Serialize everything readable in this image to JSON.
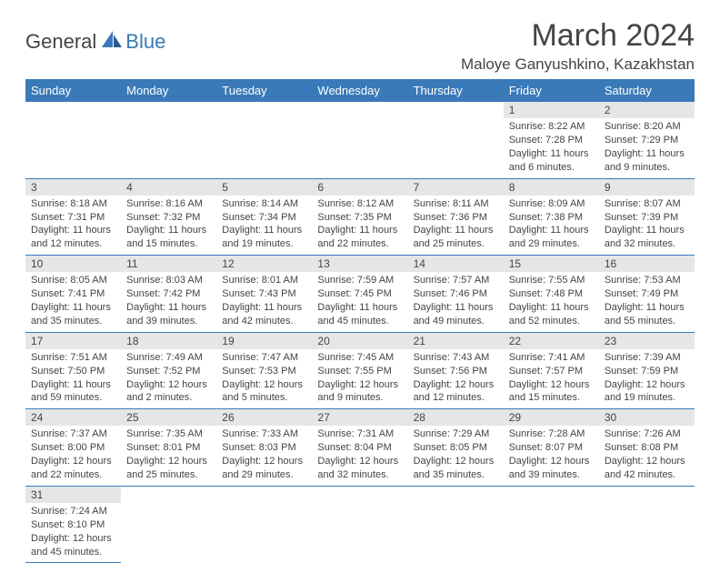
{
  "logo": {
    "general": "General",
    "blue": "Blue"
  },
  "header": {
    "month_title": "March 2024",
    "location": "Maloye Ganyushkino, Kazakhstan"
  },
  "day_headers": [
    "Sunday",
    "Monday",
    "Tuesday",
    "Wednesday",
    "Thursday",
    "Friday",
    "Saturday"
  ],
  "colors": {
    "header_bg": "#3a7ab8",
    "header_text": "#ffffff",
    "daynum_bg": "#e6e6e6",
    "text": "#444444",
    "row_border": "#3a7ab8"
  },
  "weeks": [
    [
      null,
      null,
      null,
      null,
      null,
      {
        "n": "1",
        "sun": "Sunrise: 8:22 AM",
        "set": "Sunset: 7:28 PM",
        "dl1": "Daylight: 11 hours",
        "dl2": "and 6 minutes."
      },
      {
        "n": "2",
        "sun": "Sunrise: 8:20 AM",
        "set": "Sunset: 7:29 PM",
        "dl1": "Daylight: 11 hours",
        "dl2": "and 9 minutes."
      }
    ],
    [
      {
        "n": "3",
        "sun": "Sunrise: 8:18 AM",
        "set": "Sunset: 7:31 PM",
        "dl1": "Daylight: 11 hours",
        "dl2": "and 12 minutes."
      },
      {
        "n": "4",
        "sun": "Sunrise: 8:16 AM",
        "set": "Sunset: 7:32 PM",
        "dl1": "Daylight: 11 hours",
        "dl2": "and 15 minutes."
      },
      {
        "n": "5",
        "sun": "Sunrise: 8:14 AM",
        "set": "Sunset: 7:34 PM",
        "dl1": "Daylight: 11 hours",
        "dl2": "and 19 minutes."
      },
      {
        "n": "6",
        "sun": "Sunrise: 8:12 AM",
        "set": "Sunset: 7:35 PM",
        "dl1": "Daylight: 11 hours",
        "dl2": "and 22 minutes."
      },
      {
        "n": "7",
        "sun": "Sunrise: 8:11 AM",
        "set": "Sunset: 7:36 PM",
        "dl1": "Daylight: 11 hours",
        "dl2": "and 25 minutes."
      },
      {
        "n": "8",
        "sun": "Sunrise: 8:09 AM",
        "set": "Sunset: 7:38 PM",
        "dl1": "Daylight: 11 hours",
        "dl2": "and 29 minutes."
      },
      {
        "n": "9",
        "sun": "Sunrise: 8:07 AM",
        "set": "Sunset: 7:39 PM",
        "dl1": "Daylight: 11 hours",
        "dl2": "and 32 minutes."
      }
    ],
    [
      {
        "n": "10",
        "sun": "Sunrise: 8:05 AM",
        "set": "Sunset: 7:41 PM",
        "dl1": "Daylight: 11 hours",
        "dl2": "and 35 minutes."
      },
      {
        "n": "11",
        "sun": "Sunrise: 8:03 AM",
        "set": "Sunset: 7:42 PM",
        "dl1": "Daylight: 11 hours",
        "dl2": "and 39 minutes."
      },
      {
        "n": "12",
        "sun": "Sunrise: 8:01 AM",
        "set": "Sunset: 7:43 PM",
        "dl1": "Daylight: 11 hours",
        "dl2": "and 42 minutes."
      },
      {
        "n": "13",
        "sun": "Sunrise: 7:59 AM",
        "set": "Sunset: 7:45 PM",
        "dl1": "Daylight: 11 hours",
        "dl2": "and 45 minutes."
      },
      {
        "n": "14",
        "sun": "Sunrise: 7:57 AM",
        "set": "Sunset: 7:46 PM",
        "dl1": "Daylight: 11 hours",
        "dl2": "and 49 minutes."
      },
      {
        "n": "15",
        "sun": "Sunrise: 7:55 AM",
        "set": "Sunset: 7:48 PM",
        "dl1": "Daylight: 11 hours",
        "dl2": "and 52 minutes."
      },
      {
        "n": "16",
        "sun": "Sunrise: 7:53 AM",
        "set": "Sunset: 7:49 PM",
        "dl1": "Daylight: 11 hours",
        "dl2": "and 55 minutes."
      }
    ],
    [
      {
        "n": "17",
        "sun": "Sunrise: 7:51 AM",
        "set": "Sunset: 7:50 PM",
        "dl1": "Daylight: 11 hours",
        "dl2": "and 59 minutes."
      },
      {
        "n": "18",
        "sun": "Sunrise: 7:49 AM",
        "set": "Sunset: 7:52 PM",
        "dl1": "Daylight: 12 hours",
        "dl2": "and 2 minutes."
      },
      {
        "n": "19",
        "sun": "Sunrise: 7:47 AM",
        "set": "Sunset: 7:53 PM",
        "dl1": "Daylight: 12 hours",
        "dl2": "and 5 minutes."
      },
      {
        "n": "20",
        "sun": "Sunrise: 7:45 AM",
        "set": "Sunset: 7:55 PM",
        "dl1": "Daylight: 12 hours",
        "dl2": "and 9 minutes."
      },
      {
        "n": "21",
        "sun": "Sunrise: 7:43 AM",
        "set": "Sunset: 7:56 PM",
        "dl1": "Daylight: 12 hours",
        "dl2": "and 12 minutes."
      },
      {
        "n": "22",
        "sun": "Sunrise: 7:41 AM",
        "set": "Sunset: 7:57 PM",
        "dl1": "Daylight: 12 hours",
        "dl2": "and 15 minutes."
      },
      {
        "n": "23",
        "sun": "Sunrise: 7:39 AM",
        "set": "Sunset: 7:59 PM",
        "dl1": "Daylight: 12 hours",
        "dl2": "and 19 minutes."
      }
    ],
    [
      {
        "n": "24",
        "sun": "Sunrise: 7:37 AM",
        "set": "Sunset: 8:00 PM",
        "dl1": "Daylight: 12 hours",
        "dl2": "and 22 minutes."
      },
      {
        "n": "25",
        "sun": "Sunrise: 7:35 AM",
        "set": "Sunset: 8:01 PM",
        "dl1": "Daylight: 12 hours",
        "dl2": "and 25 minutes."
      },
      {
        "n": "26",
        "sun": "Sunrise: 7:33 AM",
        "set": "Sunset: 8:03 PM",
        "dl1": "Daylight: 12 hours",
        "dl2": "and 29 minutes."
      },
      {
        "n": "27",
        "sun": "Sunrise: 7:31 AM",
        "set": "Sunset: 8:04 PM",
        "dl1": "Daylight: 12 hours",
        "dl2": "and 32 minutes."
      },
      {
        "n": "28",
        "sun": "Sunrise: 7:29 AM",
        "set": "Sunset: 8:05 PM",
        "dl1": "Daylight: 12 hours",
        "dl2": "and 35 minutes."
      },
      {
        "n": "29",
        "sun": "Sunrise: 7:28 AM",
        "set": "Sunset: 8:07 PM",
        "dl1": "Daylight: 12 hours",
        "dl2": "and 39 minutes."
      },
      {
        "n": "30",
        "sun": "Sunrise: 7:26 AM",
        "set": "Sunset: 8:08 PM",
        "dl1": "Daylight: 12 hours",
        "dl2": "and 42 minutes."
      }
    ],
    [
      {
        "n": "31",
        "sun": "Sunrise: 7:24 AM",
        "set": "Sunset: 8:10 PM",
        "dl1": "Daylight: 12 hours",
        "dl2": "and 45 minutes."
      },
      null,
      null,
      null,
      null,
      null,
      null
    ]
  ]
}
